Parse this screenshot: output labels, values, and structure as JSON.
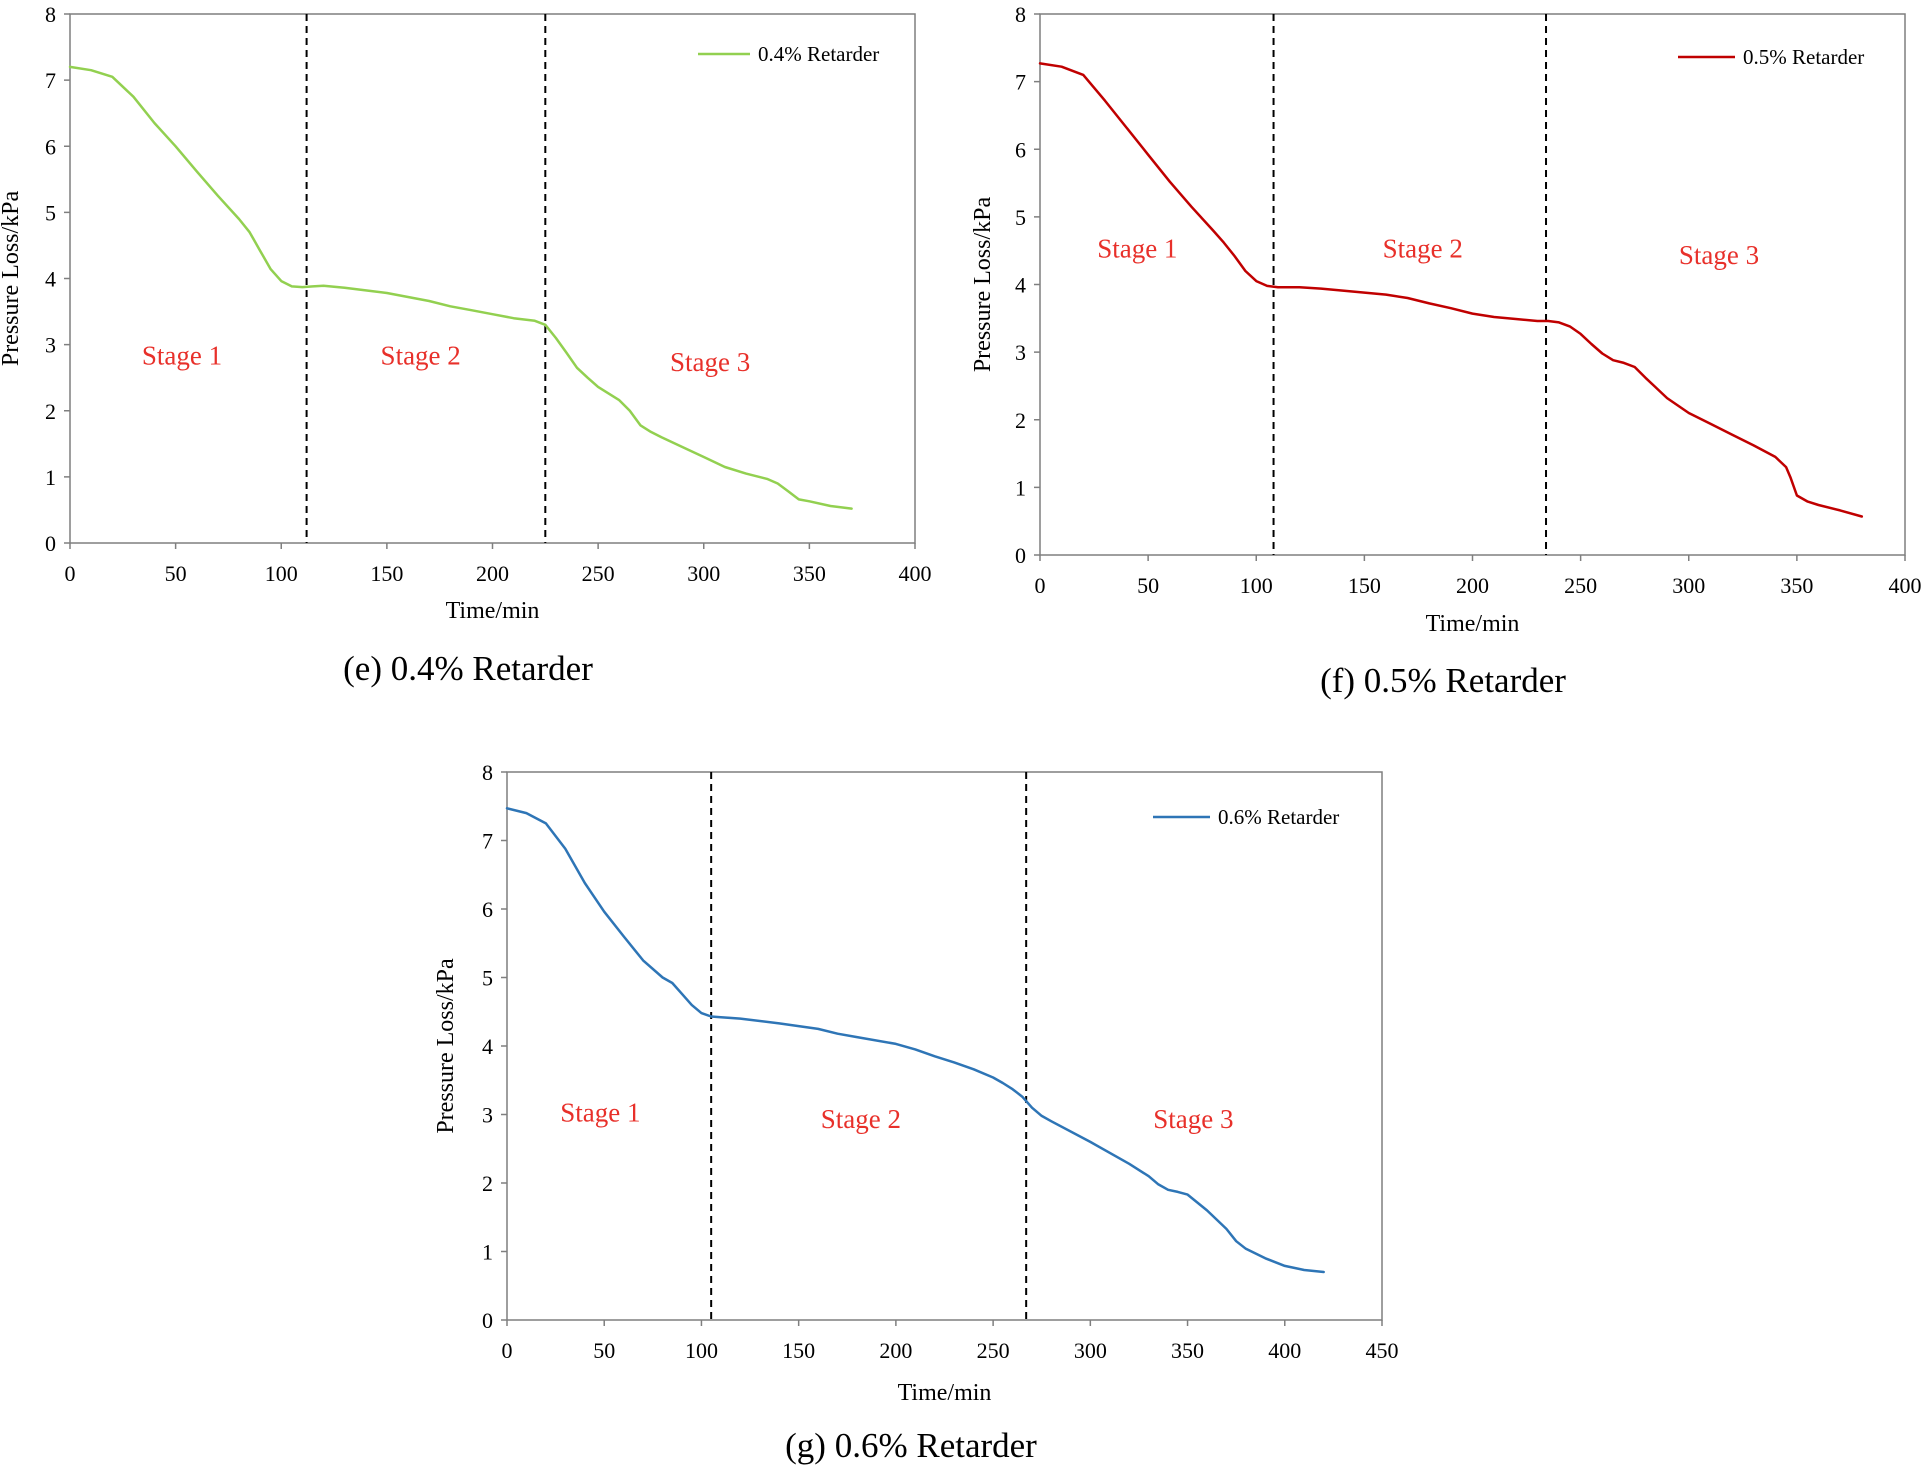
{
  "chart_data": [
    {
      "type": "line",
      "caption": "(e) 0.4% Retarder",
      "xlabel": "Time/min",
      "ylabel": "Pressure Loss/kPa",
      "xlim": [
        0,
        400
      ],
      "ylim": [
        0,
        8
      ],
      "xticks": [
        "0",
        "50",
        "100",
        "150",
        "200",
        "250",
        "300",
        "350",
        "400"
      ],
      "yticks": [
        "0",
        "1",
        "2",
        "3",
        "4",
        "5",
        "6",
        "7",
        "8"
      ],
      "legend": "top-right",
      "grid": false,
      "color": "#92d050",
      "series": [
        {
          "name": "0.4% Retarder",
          "x": [
            0,
            10,
            20,
            30,
            40,
            50,
            60,
            70,
            80,
            85,
            90,
            95,
            100,
            105,
            110,
            115,
            120,
            130,
            140,
            150,
            160,
            170,
            180,
            190,
            200,
            210,
            220,
            225,
            230,
            235,
            240,
            245,
            250,
            260,
            265,
            270,
            275,
            280,
            290,
            300,
            310,
            320,
            330,
            335,
            340,
            345,
            350,
            360,
            370
          ],
          "values": [
            7.2,
            7.15,
            7.05,
            6.75,
            6.35,
            6.0,
            5.62,
            5.25,
            4.9,
            4.7,
            4.42,
            4.14,
            3.96,
            3.88,
            3.87,
            3.88,
            3.89,
            3.86,
            3.82,
            3.78,
            3.72,
            3.66,
            3.58,
            3.52,
            3.46,
            3.4,
            3.36,
            3.3,
            3.1,
            2.88,
            2.65,
            2.5,
            2.36,
            2.16,
            2.0,
            1.78,
            1.68,
            1.6,
            1.45,
            1.3,
            1.15,
            1.05,
            0.97,
            0.9,
            0.78,
            0.66,
            0.63,
            0.56,
            0.52
          ]
        }
      ],
      "dividers": [
        112,
        225
      ],
      "stages": [
        {
          "label": "Stage 1",
          "x": 53,
          "y": 2.7
        },
        {
          "label": "Stage 2",
          "x": 166,
          "y": 2.7
        },
        {
          "label": "Stage 3",
          "x": 303,
          "y": 2.6
        }
      ]
    },
    {
      "type": "line",
      "caption": "(f)  0.5% Retarder",
      "xlabel": "Time/min",
      "ylabel": "Pressure Loss/kPa",
      "xlim": [
        0,
        400
      ],
      "ylim": [
        0,
        8
      ],
      "xticks": [
        "0",
        "50",
        "100",
        "150",
        "200",
        "250",
        "300",
        "350",
        "400"
      ],
      "yticks": [
        "0",
        "1",
        "2",
        "3",
        "4",
        "5",
        "6",
        "7",
        "8"
      ],
      "legend": "top-right",
      "grid": false,
      "color": "#c00000",
      "series": [
        {
          "name": "0.5% Retarder",
          "x": [
            0,
            10,
            20,
            30,
            40,
            50,
            60,
            70,
            80,
            85,
            90,
            95,
            100,
            105,
            110,
            120,
            130,
            140,
            150,
            160,
            170,
            180,
            190,
            200,
            210,
            220,
            230,
            235,
            240,
            245,
            250,
            255,
            260,
            265,
            270,
            275,
            280,
            290,
            300,
            310,
            320,
            330,
            340,
            345,
            347,
            350,
            355,
            360,
            370,
            380
          ],
          "values": [
            7.27,
            7.22,
            7.1,
            6.72,
            6.32,
            5.92,
            5.52,
            5.15,
            4.8,
            4.62,
            4.42,
            4.2,
            4.05,
            3.98,
            3.96,
            3.96,
            3.94,
            3.91,
            3.88,
            3.85,
            3.8,
            3.72,
            3.65,
            3.57,
            3.52,
            3.49,
            3.46,
            3.46,
            3.44,
            3.38,
            3.27,
            3.12,
            2.98,
            2.88,
            2.84,
            2.78,
            2.62,
            2.32,
            2.1,
            1.94,
            1.78,
            1.62,
            1.45,
            1.3,
            1.15,
            0.88,
            0.79,
            0.74,
            0.66,
            0.57
          ]
        }
      ],
      "dividers": [
        108,
        234
      ],
      "stages": [
        {
          "label": "Stage 1",
          "x": 45,
          "y": 4.4
        },
        {
          "label": "Stage 2",
          "x": 177,
          "y": 4.4
        },
        {
          "label": "Stage 3",
          "x": 314,
          "y": 4.3
        }
      ]
    },
    {
      "type": "line",
      "caption": "(g) 0.6% Retarder",
      "xlabel": "Time/min",
      "ylabel": "Pressure Loss/kPa",
      "xlim": [
        0,
        450
      ],
      "ylim": [
        0,
        8
      ],
      "xticks": [
        "0",
        "50",
        "100",
        "150",
        "200",
        "250",
        "300",
        "350",
        "400",
        "450"
      ],
      "yticks": [
        "0",
        "1",
        "2",
        "3",
        "4",
        "5",
        "6",
        "7",
        "8"
      ],
      "legend": "top-right",
      "grid": false,
      "color": "#2e75b6",
      "series": [
        {
          "name": "0.6% Retarder",
          "x": [
            0,
            10,
            20,
            30,
            40,
            50,
            60,
            70,
            80,
            85,
            90,
            95,
            100,
            105,
            110,
            120,
            140,
            160,
            170,
            180,
            200,
            210,
            220,
            230,
            240,
            250,
            255,
            260,
            265,
            270,
            275,
            280,
            300,
            320,
            330,
            335,
            340,
            345,
            350,
            360,
            370,
            375,
            380,
            390,
            400,
            410,
            420
          ],
          "values": [
            7.47,
            7.4,
            7.25,
            6.88,
            6.38,
            5.96,
            5.6,
            5.25,
            5.0,
            4.92,
            4.76,
            4.6,
            4.48,
            4.43,
            4.42,
            4.4,
            4.33,
            4.25,
            4.18,
            4.13,
            4.03,
            3.95,
            3.85,
            3.76,
            3.66,
            3.54,
            3.46,
            3.37,
            3.26,
            3.1,
            2.98,
            2.9,
            2.6,
            2.28,
            2.1,
            1.98,
            1.9,
            1.87,
            1.83,
            1.6,
            1.33,
            1.15,
            1.04,
            0.9,
            0.79,
            0.73,
            0.7
          ]
        }
      ],
      "dividers": [
        105,
        267
      ],
      "stages": [
        {
          "label": "Stage 1",
          "x": 48,
          "y": 2.9
        },
        {
          "label": "Stage 2",
          "x": 182,
          "y": 2.8
        },
        {
          "label": "Stage 3",
          "x": 353,
          "y": 2.8
        }
      ]
    }
  ]
}
